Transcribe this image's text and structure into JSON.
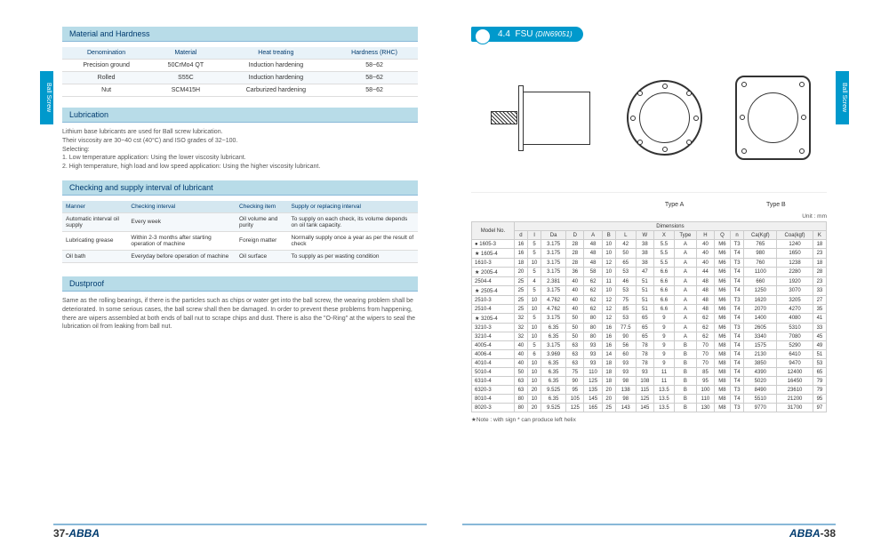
{
  "side_tab": "Ball Screw",
  "chapter": {
    "num": "4.4",
    "title": "FSU",
    "spec": "(DIN69051)"
  },
  "left": {
    "material": {
      "header": "Material and Hardness",
      "cols": [
        "Denomination",
        "Material",
        "Heat treating",
        "Hardness (RHC)"
      ],
      "rows": [
        [
          "Precision ground",
          "50CrMo4 QT",
          "Induction hardening",
          "58~62"
        ],
        [
          "Rolled",
          "S55C",
          "Induction hardening",
          "58~62"
        ],
        [
          "Nut",
          "SCM415H",
          "Carburized hardening",
          "58~62"
        ]
      ]
    },
    "lubrication": {
      "header": "Lubrication",
      "lines": [
        "Lithium base lubricants are used for Ball screw lubrication.",
        "Their viscosity are 30~40 cst (40°C) and ISO grades of 32~100.",
        "Selecting:",
        "1. Low temperature application: Using the lower viscosity lubricant.",
        "2. High temperature, high load and low speed application: Using the higher viscosity lubricant."
      ]
    },
    "check": {
      "header": "Checking and supply interval of lubricant",
      "cols": [
        "Manner",
        "Checking interval",
        "Checking item",
        "Supply or replacing interval"
      ],
      "rows": [
        [
          "Automatic interval oil supply",
          "Every week",
          "Oil volume and purity",
          "To supply on each check, its volume depends on oil tank capacity."
        ],
        [
          "Lubricating grease",
          "Within 2-3 months after starting operation of machine",
          "Foreign matter",
          "Normally supply once a year as per the result of check"
        ],
        [
          "Oil bath",
          "Everyday before operation of machine",
          "Oil surface",
          "To supply as per wasting condition"
        ]
      ]
    },
    "dustproof": {
      "header": "Dustproof",
      "text": "Same as the rolling bearings, if there is the particles such as chips or water get into the ball screw, the wearing problem shall be deteriorated. In some serious cases, the ball screw shall then be damaged. In order to prevent these problems from happening, there are wipers assembled at both ends of ball nut to scrape chips and dust. There is also the \"O-Ring\" at the wipers to seal the lubrication oil from leaking from ball nut."
    }
  },
  "right": {
    "unit": "Unit : mm",
    "type_a": "Type A",
    "type_b": "Type B",
    "dims": {
      "group_header": "Dimensions",
      "cols": [
        "Model No.",
        "d",
        "I",
        "Da",
        "D",
        "A",
        "B",
        "L",
        "W",
        "X",
        "Type",
        "H",
        "Q",
        "n",
        "Ca(Kgf)",
        "Coa(kgf)",
        "K"
      ],
      "rows": [
        [
          "● 1605-3",
          "16",
          "5",
          "3.175",
          "28",
          "48",
          "10",
          "42",
          "38",
          "5.5",
          "A",
          "40",
          "M6",
          "T3",
          "765",
          "1240",
          "18"
        ],
        [
          "★ 1605-4",
          "16",
          "5",
          "3.175",
          "28",
          "48",
          "10",
          "50",
          "38",
          "5.5",
          "A",
          "40",
          "M6",
          "T4",
          "980",
          "1650",
          "23"
        ],
        [
          "1610-3",
          "18",
          "10",
          "3.175",
          "28",
          "48",
          "12",
          "65",
          "38",
          "5.5",
          "A",
          "40",
          "M6",
          "T3",
          "760",
          "1238",
          "18"
        ],
        [
          "★ 2005-4",
          "20",
          "5",
          "3.175",
          "36",
          "58",
          "10",
          "53",
          "47",
          "6.6",
          "A",
          "44",
          "M6",
          "T4",
          "1100",
          "2280",
          "28"
        ],
        [
          "2504-4",
          "25",
          "4",
          "2.381",
          "40",
          "62",
          "11",
          "46",
          "51",
          "6.6",
          "A",
          "48",
          "M6",
          "T4",
          "660",
          "1920",
          "23"
        ],
        [
          "★ 2505-4",
          "25",
          "5",
          "3.175",
          "40",
          "62",
          "10",
          "53",
          "51",
          "6.6",
          "A",
          "48",
          "M6",
          "T4",
          "1250",
          "3070",
          "33"
        ],
        [
          "2510-3",
          "25",
          "10",
          "4.762",
          "40",
          "62",
          "12",
          "75",
          "51",
          "6.6",
          "A",
          "48",
          "M6",
          "T3",
          "1620",
          "3205",
          "27"
        ],
        [
          "2510-4",
          "25",
          "10",
          "4.762",
          "40",
          "62",
          "12",
          "85",
          "51",
          "6.6",
          "A",
          "48",
          "M6",
          "T4",
          "2070",
          "4270",
          "35"
        ],
        [
          "★ 3205-4",
          "32",
          "5",
          "3.175",
          "50",
          "80",
          "12",
          "53",
          "65",
          "9",
          "A",
          "62",
          "M6",
          "T4",
          "1400",
          "4080",
          "41"
        ],
        [
          "3210-3",
          "32",
          "10",
          "6.35",
          "50",
          "80",
          "16",
          "77.5",
          "65",
          "9",
          "A",
          "62",
          "M6",
          "T3",
          "2605",
          "5310",
          "33"
        ],
        [
          "3210-4",
          "32",
          "10",
          "6.35",
          "50",
          "80",
          "16",
          "90",
          "65",
          "9",
          "A",
          "62",
          "M6",
          "T4",
          "3340",
          "7080",
          "45"
        ],
        [
          "4005-4",
          "40",
          "5",
          "3.175",
          "63",
          "93",
          "16",
          "56",
          "78",
          "9",
          "B",
          "70",
          "M8",
          "T4",
          "1575",
          "5290",
          "49"
        ],
        [
          "4006-4",
          "40",
          "6",
          "3.969",
          "63",
          "93",
          "14",
          "60",
          "78",
          "9",
          "B",
          "70",
          "M8",
          "T4",
          "2130",
          "6410",
          "51"
        ],
        [
          "4010-4",
          "40",
          "10",
          "6.35",
          "63",
          "93",
          "18",
          "93",
          "78",
          "9",
          "B",
          "70",
          "M8",
          "T4",
          "3850",
          "9470",
          "53"
        ],
        [
          "5010-4",
          "50",
          "10",
          "6.35",
          "75",
          "110",
          "18",
          "93",
          "93",
          "11",
          "B",
          "85",
          "M8",
          "T4",
          "4390",
          "12400",
          "65"
        ],
        [
          "6310-4",
          "63",
          "10",
          "6.35",
          "90",
          "125",
          "18",
          "98",
          "108",
          "11",
          "B",
          "95",
          "M8",
          "T4",
          "5020",
          "16450",
          "79"
        ],
        [
          "6320-3",
          "63",
          "20",
          "9.525",
          "95",
          "135",
          "20",
          "138",
          "115",
          "13.5",
          "B",
          "100",
          "M8",
          "T3",
          "8490",
          "23610",
          "79"
        ],
        [
          "8010-4",
          "80",
          "10",
          "6.35",
          "105",
          "145",
          "20",
          "98",
          "125",
          "13.5",
          "B",
          "110",
          "M8",
          "T4",
          "5510",
          "21200",
          "95"
        ],
        [
          "8020-3",
          "80",
          "20",
          "9.525",
          "125",
          "165",
          "25",
          "143",
          "145",
          "13.5",
          "B",
          "130",
          "M8",
          "T3",
          "9770",
          "31700",
          "97"
        ]
      ]
    },
    "footnote": "★Note : with sign * can produce left helix"
  },
  "footer": {
    "brand": "ABBA",
    "pn_left": "37-",
    "pn_right": "-38"
  }
}
